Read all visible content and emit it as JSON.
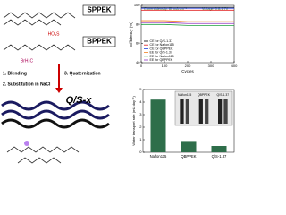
{
  "scheme": {
    "labels": {
      "sppek": "SPPEK",
      "bppek": "BPPEK",
      "sulfonate": "HO₃S",
      "bromide": "BrH₂C",
      "step1": "1. Blending",
      "step2": "2. Substitution in NaCl",
      "step3": "3. Quaternization",
      "product": "Q/S-x"
    }
  },
  "chart_data": [
    {
      "type": "line",
      "annotations": [
        "Current density: 80 mA cm⁻²",
        "Voltage: 0.8-1.7V"
      ],
      "xlabel": "Cycles",
      "ylabel": "Efficiency (%)",
      "xlim": [
        0,
        400
      ],
      "ylim": [
        40,
        100
      ],
      "xticks": [
        0,
        100,
        200,
        300,
        400
      ],
      "yticks": [
        40,
        60,
        80,
        100
      ],
      "legend": "lower left",
      "x": [
        0,
        100,
        200,
        300,
        400
      ],
      "series": [
        {
          "name": "CE for Q/S-1.37",
          "color": "#000000",
          "values": [
            98,
            98,
            98,
            98,
            98
          ]
        },
        {
          "name": "CE for Nafion115",
          "color": "#e02020",
          "values": [
            95,
            95,
            95,
            95,
            95
          ]
        },
        {
          "name": "CE for QBPPEK",
          "color": "#2040e0",
          "values": [
            97,
            97,
            97,
            97,
            97
          ]
        },
        {
          "name": "EE for Q/S-1.37",
          "color": "#f08020",
          "values": [
            84,
            84,
            83,
            83,
            83
          ]
        },
        {
          "name": "EE for Nafion115",
          "color": "#20a040",
          "values": [
            80,
            80,
            79,
            79,
            79
          ]
        },
        {
          "name": "EE for QBPPEK",
          "color": "#9030c0",
          "values": [
            82,
            82,
            81,
            81,
            81
          ]
        }
      ]
    },
    {
      "type": "bar",
      "ylabel": "Water transport rate (mL day⁻¹)",
      "categories": [
        "Nafion115",
        "QBPPEK",
        "Q/S-1.37"
      ],
      "values": [
        4.2,
        0.9,
        0.5
      ],
      "color": "#2e6e4a",
      "ylim": [
        0,
        5
      ],
      "yticks": [
        0,
        1,
        2,
        3,
        4,
        5
      ],
      "inset_labels": [
        "Nafion115",
        "QBPPEK",
        "Q/S-1.37"
      ]
    }
  ]
}
